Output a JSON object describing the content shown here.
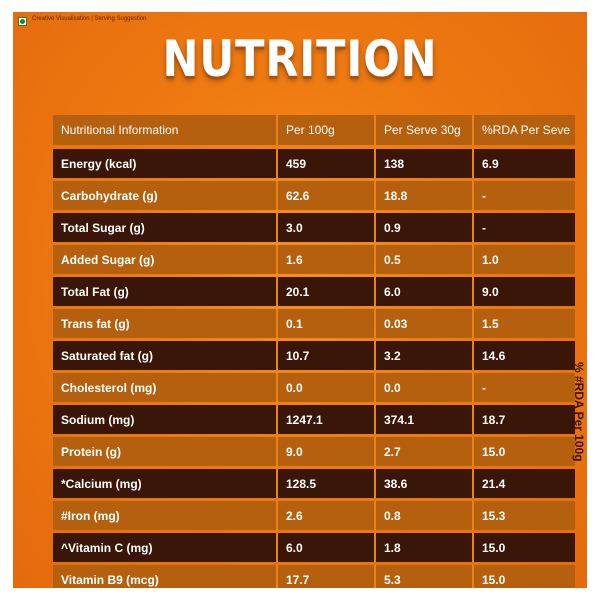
{
  "disclaimer": "Creative Visualisation | Serving Suggestion",
  "title": "NUTRITION",
  "side_note": "% #RDA Per 100g",
  "columns": [
    "Nutritional Information",
    "Per 100g",
    "Per Serve 30g",
    "%RDA Per Seve"
  ],
  "rows": [
    {
      "name": "Energy (kcal)",
      "per100": "459",
      "serve": "138",
      "rda": "6.9"
    },
    {
      "name": "Carbohydrate (g)",
      "per100": "62.6",
      "serve": "18.8",
      "rda": "-"
    },
    {
      "name": "Total Sugar (g)",
      "per100": "3.0",
      "serve": "0.9",
      "rda": "-"
    },
    {
      "name": "Added Sugar (g)",
      "per100": "1.6",
      "serve": "0.5",
      "rda": "1.0"
    },
    {
      "name": "Total Fat (g)",
      "per100": "20.1",
      "serve": "6.0",
      "rda": "9.0"
    },
    {
      "name": "Trans fat (g)",
      "per100": "0.1",
      "serve": "0.03",
      "rda": "1.5"
    },
    {
      "name": "Saturated fat (g)",
      "per100": "10.7",
      "serve": "3.2",
      "rda": "14.6"
    },
    {
      "name": "Cholesterol (mg)",
      "per100": "0.0",
      "serve": "0.0",
      "rda": "-"
    },
    {
      "name": "Sodium (mg)",
      "per100": "1247.1",
      "serve": "374.1",
      "rda": "18.7"
    },
    {
      "name": "Protein (g)",
      "per100": "9.0",
      "serve": "2.7",
      "rda": "15.0"
    },
    {
      "name": "*Calcium (mg)",
      "per100": "128.5",
      "serve": "38.6",
      "rda": "21.4"
    },
    {
      "name": "#Iron (mg)",
      "per100": "2.6",
      "serve": "0.8",
      "rda": "15.3"
    },
    {
      "name": "^Vitamin C (mg)",
      "per100": "6.0",
      "serve": "1.8",
      "rda": "15.0"
    },
    {
      "name": "Vitamin B9 (mcg)",
      "per100": "17.7",
      "serve": "5.3",
      "rda": "15.0"
    }
  ],
  "colors": {
    "dark_row": "#3a1608",
    "light_row": "#b4600f",
    "background": "#ee7a12"
  }
}
